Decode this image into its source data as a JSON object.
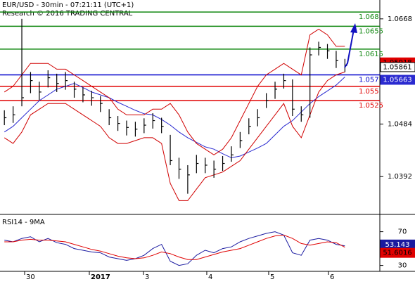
{
  "chart_data": {
    "type": "ohlc",
    "title": "EUR/USD - 30min - 07:21:11 (UTC+1)",
    "subtitle": "Research © 2016 TRADING CENTRAL",
    "xlim": [
      -0.5,
      43
    ],
    "xticks": [
      {
        "value": 2.32,
        "label": "30"
      },
      {
        "value": 9.73,
        "label": "2017"
      },
      {
        "value": 15.93,
        "label": "3"
      },
      {
        "value": 23.18,
        "label": "4"
      },
      {
        "value": 30.27,
        "label": "5"
      },
      {
        "value": 37.12,
        "label": "6"
      }
    ],
    "ylim": [
      1.0332,
      1.0701
    ],
    "yticks": [
      1.0668,
      1.0484,
      1.0392
    ],
    "high": [
      1.0508,
      1.0515,
      1.0668,
      1.0575,
      1.0558,
      1.0578,
      1.0572,
      1.0575,
      1.0558,
      1.0548,
      1.0542,
      1.0533,
      1.051,
      1.0498,
      1.049,
      1.0488,
      1.0494,
      1.0503,
      1.0495,
      1.0465,
      1.0425,
      1.0412,
      1.043,
      1.0425,
      1.042,
      1.0428,
      1.0445,
      1.047,
      1.0494,
      1.051,
      1.0538,
      1.0558,
      1.0572,
      1.0562,
      1.0515,
      1.0618,
      1.0628,
      1.0624,
      1.0612,
      1.0598
    ],
    "low": [
      1.0482,
      1.0486,
      1.0515,
      1.0538,
      1.0526,
      1.0548,
      1.054,
      1.0544,
      1.053,
      1.0522,
      1.0516,
      1.0505,
      1.0482,
      1.0472,
      1.0464,
      1.0462,
      1.0468,
      1.0476,
      1.0468,
      1.0412,
      1.0388,
      1.0362,
      1.0398,
      1.0398,
      1.039,
      1.0402,
      1.0418,
      1.0442,
      1.0466,
      1.048,
      1.0512,
      1.0528,
      1.0546,
      1.0498,
      1.0488,
      1.0495,
      1.0604,
      1.0598,
      1.0582,
      1.0575
    ],
    "close": [
      1.0495,
      1.05,
      1.053,
      1.056,
      1.054,
      1.0565,
      1.0555,
      1.056,
      1.0545,
      1.0535,
      1.053,
      1.052,
      1.0495,
      1.0485,
      1.0478,
      1.0475,
      1.0482,
      1.049,
      1.048,
      1.042,
      1.0405,
      1.0395,
      1.0415,
      1.0412,
      1.0405,
      1.0415,
      1.043,
      1.0455,
      1.048,
      1.0495,
      1.0525,
      1.0545,
      1.056,
      1.051,
      1.05,
      1.0605,
      1.0618,
      1.0612,
      1.0595,
      1.05861
    ],
    "series": [
      {
        "name": "MA",
        "color": "#2a2ad0",
        "values": [
          1.047,
          1.048,
          1.0495,
          1.051,
          1.0525,
          1.0535,
          1.0545,
          1.055,
          1.0555,
          1.0548,
          1.054,
          1.0535,
          1.053,
          1.0522,
          1.0515,
          1.0508,
          1.0502,
          1.05,
          1.0492,
          1.0482,
          1.047,
          1.046,
          1.0452,
          1.0444,
          1.044,
          1.0432,
          1.0425,
          1.0428,
          1.0435,
          1.0442,
          1.045,
          1.0465,
          1.048,
          1.049,
          1.0505,
          1.052,
          1.0532,
          1.0542,
          1.0552,
          1.05663
        ]
      },
      {
        "name": "Bollinger upper",
        "color": "#d00000",
        "values": [
          1.054,
          1.055,
          1.057,
          1.059,
          1.059,
          1.059,
          1.058,
          1.058,
          1.057,
          1.056,
          1.055,
          1.054,
          1.053,
          1.051,
          1.05,
          1.05,
          1.05,
          1.051,
          1.051,
          1.052,
          1.05,
          1.047,
          1.045,
          1.044,
          1.043,
          1.044,
          1.046,
          1.049,
          1.052,
          1.055,
          1.057,
          1.058,
          1.059,
          1.058,
          1.057,
          1.064,
          1.065,
          1.064,
          1.062,
          1.062
        ]
      },
      {
        "name": "Bollinger lower",
        "color": "#d00000",
        "values": [
          1.046,
          1.045,
          1.047,
          1.05,
          1.051,
          1.052,
          1.052,
          1.052,
          1.051,
          1.05,
          1.049,
          1.048,
          1.046,
          1.045,
          1.045,
          1.0455,
          1.046,
          1.046,
          1.045,
          1.038,
          1.035,
          1.035,
          1.037,
          1.039,
          1.0395,
          1.04,
          1.041,
          1.042,
          1.044,
          1.046,
          1.048,
          1.05,
          1.052,
          1.048,
          1.046,
          1.05,
          1.054,
          1.056,
          1.057,
          1.0575
        ]
      }
    ],
    "levels": [
      {
        "value": 1.068,
        "color": "#118811"
      },
      {
        "value": 1.0655,
        "color": "#118811"
      },
      {
        "value": 1.0615,
        "color": "#118811"
      },
      {
        "value": 1.057,
        "color": "#0000cc"
      },
      {
        "value": 1.055,
        "color": "#e00000"
      },
      {
        "value": 1.0525,
        "color": "#e00000"
      }
    ],
    "marker": {
      "value": 1.05918,
      "color": "#e00000"
    },
    "rsi": {
      "title": "RSI14 - 9MA",
      "ylim": [
        23,
        88
      ],
      "yticks": [
        70,
        30
      ],
      "series": [
        {
          "name": "RSI14",
          "color": "#1a1aa0",
          "values": [
            60,
            58,
            62,
            64,
            58,
            62,
            57,
            55,
            50,
            48,
            46,
            45,
            40,
            38,
            36,
            38,
            42,
            50,
            55,
            35,
            30,
            32,
            42,
            48,
            45,
            50,
            52,
            58,
            62,
            65,
            68,
            70,
            66,
            45,
            42,
            60,
            62,
            60,
            55,
            53.143
          ]
        },
        {
          "name": "9MA",
          "color": "#e00000",
          "values": [
            58,
            58,
            60,
            61,
            60,
            60,
            59,
            58,
            55,
            52,
            49,
            47,
            44,
            41,
            39,
            38,
            39,
            42,
            46,
            44,
            40,
            37,
            37,
            40,
            43,
            46,
            48,
            50,
            54,
            58,
            62,
            65,
            66,
            62,
            56,
            54,
            56,
            58,
            57,
            51.6016
          ]
        }
      ]
    }
  }
}
